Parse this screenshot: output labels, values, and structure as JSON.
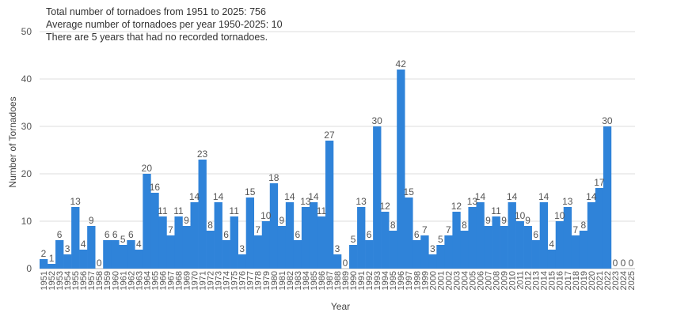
{
  "notes": [
    "Total number of tornadoes from 1951 to 2025: 756",
    "Average number of tornadoes per year 1950-2025: 10",
    "There are 5 years that had no recorded tornadoes."
  ],
  "chart_data": {
    "type": "bar",
    "xlabel": "Year",
    "ylabel": "Number of Tornadoes",
    "ylim": [
      0,
      50
    ],
    "yticks": [
      0,
      10,
      20,
      30,
      40,
      50
    ],
    "grid": true,
    "legend": "none",
    "bar_color": "#2f83d9",
    "categories": [
      "1951",
      "1952",
      "1953",
      "1954",
      "1955",
      "1956",
      "1957",
      "1958",
      "1959",
      "1960",
      "1961",
      "1962",
      "1963",
      "1964",
      "1965",
      "1966",
      "1967",
      "1968",
      "1969",
      "1970",
      "1971",
      "1972",
      "1973",
      "1974",
      "1975",
      "1976",
      "1977",
      "1978",
      "1979",
      "1980",
      "1981",
      "1982",
      "1983",
      "1984",
      "1985",
      "1986",
      "1987",
      "1988",
      "1989",
      "1990",
      "1991",
      "1992",
      "1993",
      "1994",
      "1995",
      "1996",
      "1997",
      "1998",
      "1999",
      "2000",
      "2001",
      "2002",
      "2003",
      "2004",
      "2005",
      "2006",
      "2007",
      "2008",
      "2009",
      "2010",
      "2011",
      "2012",
      "2013",
      "2014",
      "2015",
      "2016",
      "2017",
      "2018",
      "2019",
      "2020",
      "2021",
      "2022",
      "2023",
      "2024",
      "2025"
    ],
    "values": [
      2,
      1,
      6,
      3,
      13,
      4,
      9,
      0,
      6,
      6,
      5,
      6,
      4,
      20,
      16,
      11,
      7,
      11,
      9,
      14,
      23,
      8,
      14,
      6,
      11,
      3,
      15,
      7,
      10,
      18,
      9,
      14,
      6,
      13,
      14,
      11,
      27,
      3,
      0,
      5,
      13,
      6,
      30,
      12,
      8,
      42,
      15,
      6,
      7,
      3,
      5,
      7,
      12,
      8,
      13,
      14,
      9,
      11,
      9,
      14,
      10,
      9,
      6,
      14,
      4,
      10,
      13,
      7,
      8,
      14,
      17,
      30,
      0,
      0,
      0
    ],
    "data_labels": [
      "2",
      "1",
      "6",
      "3",
      "13",
      "4",
      "9",
      "0",
      "6",
      "6",
      "5",
      "6",
      "4",
      "20",
      "16",
      "11",
      "7",
      "11",
      "9",
      "14",
      "23",
      "8",
      "14",
      "6",
      "11",
      "3",
      "15",
      "7",
      "10",
      "18",
      "9",
      "14",
      "6",
      "13",
      "14",
      "11",
      "27",
      "3",
      "0",
      "5",
      "13",
      "6",
      "30",
      "12",
      "8",
      "42",
      "15",
      "6",
      "7",
      "3",
      "5",
      "7",
      "12",
      "8",
      "13",
      "14",
      "9",
      "11",
      "9",
      "14",
      "10",
      "9",
      "6",
      "14",
      "4",
      "10",
      "13",
      "7",
      "8",
      "14",
      "17",
      "30",
      "0",
      "0",
      "0"
    ]
  }
}
